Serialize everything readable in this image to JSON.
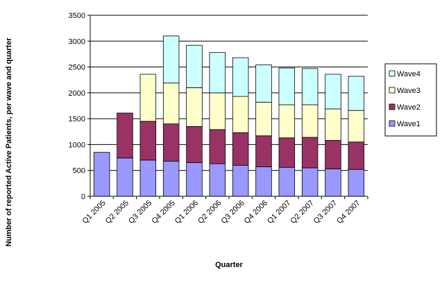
{
  "chart_data": {
    "type": "bar",
    "stacked": true,
    "title": "",
    "xlabel": "Quarter",
    "ylabel": "Number of reported Active Patients, per wave and quarter",
    "ylim": [
      0,
      3500
    ],
    "yticks": [
      0,
      500,
      1000,
      1500,
      2000,
      2500,
      3000,
      3500
    ],
    "grid": true,
    "legend_position": "right",
    "categories": [
      "Q1 2005",
      "Q2 2005",
      "Q3 2005",
      "Q4 2005",
      "Q1 2006",
      "Q2 2006",
      "Q3 2006",
      "Q4 2006",
      "Q1 2007",
      "Q2 2007",
      "Q3 2007",
      "Q4 2007"
    ],
    "series": [
      {
        "name": "Wave1",
        "color": "#9999ff",
        "values": [
          850,
          740,
          700,
          680,
          650,
          630,
          600,
          570,
          560,
          550,
          530,
          520
        ]
      },
      {
        "name": "Wave2",
        "color": "#993366",
        "values": [
          0,
          870,
          750,
          720,
          700,
          660,
          630,
          600,
          570,
          590,
          550,
          530
        ]
      },
      {
        "name": "Wave3",
        "color": "#ffffcc",
        "values": [
          0,
          0,
          910,
          790,
          750,
          710,
          700,
          650,
          640,
          630,
          610,
          610
        ]
      },
      {
        "name": "Wave4",
        "color": "#ccffff",
        "values": [
          0,
          0,
          0,
          910,
          820,
          780,
          750,
          720,
          710,
          700,
          670,
          660
        ]
      }
    ],
    "legend_order": [
      "Wave4",
      "Wave3",
      "Wave2",
      "Wave1"
    ]
  }
}
